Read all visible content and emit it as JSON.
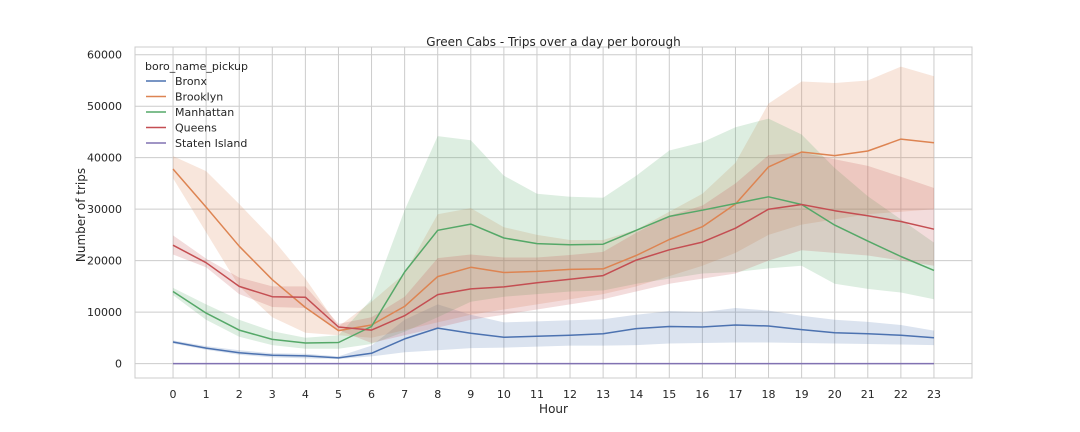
{
  "chart_data": {
    "type": "line",
    "title": "Green Cabs - Trips over a day per borough",
    "xlabel": "Hour",
    "ylabel": "Number of trips",
    "x": [
      0,
      1,
      2,
      3,
      4,
      5,
      6,
      7,
      8,
      9,
      10,
      11,
      12,
      13,
      14,
      15,
      16,
      17,
      18,
      19,
      20,
      21,
      22,
      23
    ],
    "x_tick_labels": [
      "0",
      "1",
      "2",
      "3",
      "4",
      "5",
      "6",
      "7",
      "8",
      "9",
      "10",
      "11",
      "12",
      "13",
      "14",
      "15",
      "16",
      "17",
      "18",
      "19",
      "20",
      "21",
      "22",
      "23"
    ],
    "ylim": [
      -2800,
      61500
    ],
    "y_ticks": [
      0,
      10000,
      20000,
      30000,
      40000,
      50000,
      60000
    ],
    "y_tick_labels": [
      "0",
      "10000",
      "20000",
      "30000",
      "40000",
      "50000",
      "60000"
    ],
    "grid": true,
    "legend_title": "boro_name_pickup",
    "legend_position": "top-left",
    "series": [
      {
        "name": "Bronx",
        "color": "#4c72b0",
        "values": [
          4200,
          3000,
          2100,
          1600,
          1500,
          1100,
          2000,
          4800,
          6900,
          5900,
          5100,
          5300,
          5500,
          5800,
          6800,
          7200,
          7100,
          7500,
          7300,
          6600,
          6000,
          5800,
          5500,
          5000
        ],
        "ci_low": [
          3900,
          2700,
          1700,
          1200,
          1000,
          900,
          1400,
          2200,
          2600,
          3000,
          3100,
          3300,
          3500,
          3500,
          3600,
          3900,
          4000,
          4100,
          4100,
          4000,
          3900,
          3800,
          3700,
          3600
        ],
        "ci_high": [
          4500,
          3400,
          2600,
          2000,
          1900,
          1400,
          3500,
          8500,
          11500,
          9500,
          8000,
          8200,
          8400,
          8600,
          9500,
          10200,
          10000,
          10800,
          10300,
          9300,
          8500,
          8100,
          7500,
          6400
        ]
      },
      {
        "name": "Brooklyn",
        "color": "#dd8452",
        "values": [
          37800,
          30400,
          22800,
          16300,
          10900,
          6400,
          7500,
          11100,
          16900,
          18700,
          17700,
          17900,
          18300,
          18400,
          21000,
          24100,
          26600,
          31000,
          38200,
          41100,
          40400,
          41300,
          43600,
          42900
        ],
        "ci_low": [
          36000,
          25500,
          15000,
          9000,
          6000,
          5500,
          5000,
          6500,
          8000,
          9500,
          10500,
          11500,
          12500,
          13500,
          15000,
          17000,
          19000,
          21500,
          25000,
          27000,
          28000,
          29000,
          29500,
          30000
        ],
        "ci_high": [
          40300,
          37400,
          31000,
          24300,
          16500,
          7200,
          12000,
          17500,
          29000,
          30200,
          26500,
          25000,
          24000,
          24000,
          26000,
          29500,
          33000,
          39000,
          50500,
          54800,
          54500,
          55000,
          57700,
          55800
        ]
      },
      {
        "name": "Manhattan",
        "color": "#55a868",
        "values": [
          14000,
          9800,
          6500,
          4700,
          4000,
          4100,
          7200,
          17800,
          25900,
          27100,
          24400,
          23300,
          23100,
          23200,
          25900,
          28600,
          29800,
          31100,
          32400,
          30900,
          26900,
          23800,
          20800,
          18100
        ],
        "ci_low": [
          13300,
          8500,
          5200,
          3600,
          2900,
          2900,
          3800,
          6200,
          9000,
          12000,
          13000,
          13500,
          14000,
          14200,
          15500,
          16500,
          17500,
          17800,
          18500,
          19000,
          15500,
          14500,
          13800,
          12500
        ],
        "ci_high": [
          14700,
          11500,
          8500,
          6300,
          5000,
          5500,
          12500,
          29800,
          44200,
          43400,
          36500,
          33000,
          32400,
          32200,
          36500,
          41400,
          43000,
          45900,
          47600,
          44500,
          38000,
          32500,
          28000,
          23500
        ]
      },
      {
        "name": "Queens",
        "color": "#c44e52",
        "values": [
          23000,
          19600,
          15000,
          13000,
          12900,
          7100,
          6500,
          9300,
          13400,
          14500,
          14900,
          15700,
          16400,
          17100,
          20100,
          22100,
          23600,
          26300,
          30000,
          30900,
          29700,
          28700,
          27600,
          26100
        ],
        "ci_low": [
          21200,
          18700,
          13500,
          11000,
          10800,
          6500,
          4000,
          5500,
          7000,
          8500,
          9500,
          10500,
          11500,
          12500,
          14000,
          15500,
          16500,
          17500,
          20000,
          22000,
          21500,
          21000,
          20000,
          19000
        ],
        "ci_high": [
          24900,
          20400,
          16700,
          15000,
          15000,
          7700,
          9000,
          13000,
          20500,
          21200,
          20600,
          20600,
          21100,
          21700,
          25400,
          28700,
          30700,
          35000,
          40500,
          41000,
          39700,
          38400,
          36300,
          34100
        ]
      },
      {
        "name": "Staten Island",
        "color": "#8172b2",
        "values": [
          0,
          0,
          0,
          0,
          0,
          0,
          0,
          0,
          0,
          0,
          0,
          0,
          0,
          0,
          0,
          0,
          0,
          0,
          0,
          0,
          0,
          0,
          0,
          0
        ],
        "ci_low": [
          0,
          0,
          0,
          0,
          0,
          0,
          0,
          0,
          0,
          0,
          0,
          0,
          0,
          0,
          0,
          0,
          0,
          0,
          0,
          0,
          0,
          0,
          0,
          0
        ],
        "ci_high": [
          20,
          20,
          20,
          20,
          20,
          20,
          20,
          20,
          20,
          20,
          20,
          20,
          20,
          20,
          20,
          20,
          20,
          20,
          20,
          20,
          20,
          20,
          20,
          20
        ]
      }
    ]
  }
}
